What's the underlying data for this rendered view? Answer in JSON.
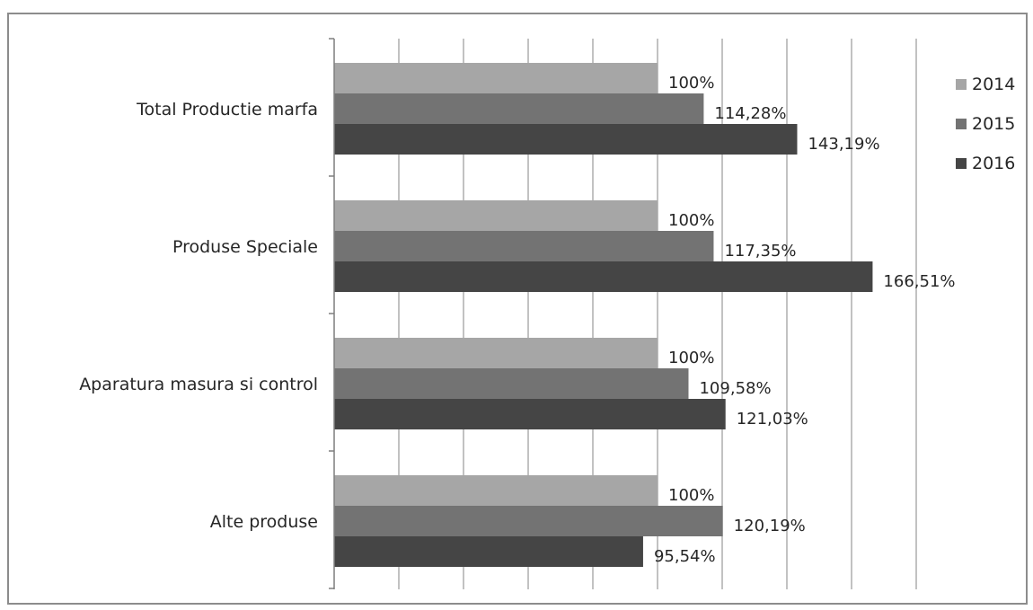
{
  "chart_data": {
    "type": "bar",
    "orientation": "horizontal",
    "title": "",
    "xlabel": "",
    "ylabel": "",
    "xlim": [
      0,
      250
    ],
    "grid": true,
    "legend": "right",
    "categories": [
      "Total Productie marfa",
      "Produse Speciale",
      "Aparatura masura si control",
      "Alte produse"
    ],
    "series": [
      {
        "name": "2014",
        "color": "#a6a6a6",
        "values": [
          100,
          100,
          100,
          100
        ],
        "labels": [
          "100%",
          "100%",
          "100%",
          "100%"
        ]
      },
      {
        "name": "2015",
        "color": "#737373",
        "values": [
          114.28,
          117.35,
          109.58,
          120.19
        ],
        "labels": [
          "114,28%",
          "117,35%",
          "109,58%",
          "120,19%"
        ]
      },
      {
        "name": "2016",
        "color": "#454545",
        "values": [
          143.19,
          166.51,
          121.03,
          95.54
        ],
        "labels": [
          "143,19%",
          "166,51%",
          "121,03%",
          "95,54%"
        ]
      }
    ]
  }
}
